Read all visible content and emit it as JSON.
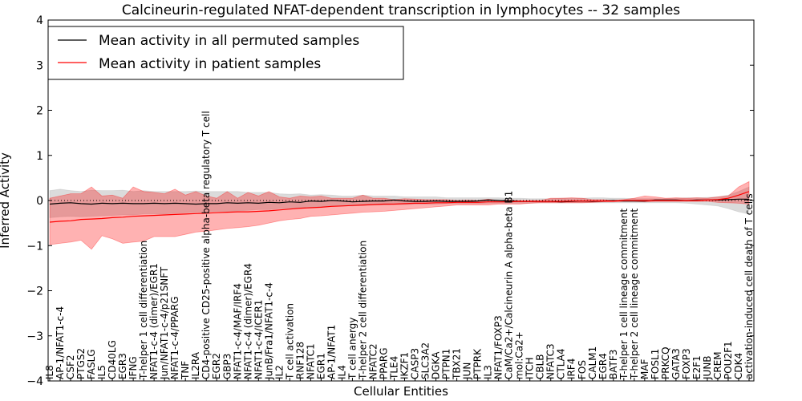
{
  "chart_data": {
    "type": "line",
    "title": "Calcineurin-regulated NFAT-dependent transcription in lymphocytes -- 32 samples",
    "xlabel": "Cellular Entities",
    "ylabel": "Inferred Activity",
    "ylim": [
      -4,
      4
    ],
    "yticks": [
      -4,
      -3,
      -2,
      -1,
      0,
      1,
      2,
      3,
      4
    ],
    "legend_position": "top-left",
    "categories": [
      "IL8",
      "AP-1/NFAT1-c-4",
      "CSF2",
      "PTGS2",
      "FASLG",
      "IL5",
      "CD40LG",
      "EGR3",
      "IFNG",
      "T-helper 1 cell differentiation",
      "NFAT1-c-4 (dimer)/EGR1",
      "Jun/NFAT1-c-4/p21SNFT",
      "NFAT1-c-4/PPARG",
      "TNF",
      "IL2RA",
      "CD4-positive CD25-positive alpha-beta regulatory T cell",
      "EGR2",
      "GBP3",
      "NFAT1-c-4/MAF/IRF4",
      "NFAT1-c-4 (dimer)/EGR4",
      "NFAT1-c-4/ICER1",
      "JunB/Fra1/NFAT1-c-4",
      "IL2",
      "T cell activation",
      "RNF128",
      "NFATC1",
      "EGR1",
      "AP-1/NFAT1",
      "IL4",
      "T cell anergy",
      "T-helper 2 cell differentiation",
      "NFATC2",
      "PPARG",
      "TLE4",
      "IKZF1",
      "CASP3",
      "SLC3A2",
      "DGKA",
      "PTPN1",
      "TBX21",
      "JUN",
      "PTPRK",
      "IL3",
      "NFAT1/FOXP3",
      "CaM/Ca2+/Calcineurin A alpha-beta B1",
      "mol:Ca2+",
      "ITCH",
      "CBLB",
      "NFATC3",
      "CTLA4",
      "IRF4",
      "FOS",
      "CALM1",
      "EGR4",
      "BATF3",
      "T-helper 1 cell lineage commitment",
      "T-helper 2 cell lineage commitment",
      "MAF",
      "FOSL1",
      "PRKCQ",
      "GATA3",
      "FOXP3",
      "E2F1",
      "JUNB",
      "CREM",
      "POU2F1",
      "CDK4",
      "activation-induced cell death of T cells"
    ],
    "series": [
      {
        "name": "Mean activity in all permuted samples",
        "color": "#000000",
        "values": [
          -0.08,
          -0.06,
          -0.05,
          -0.07,
          -0.08,
          -0.06,
          -0.07,
          -0.06,
          -0.07,
          -0.07,
          -0.06,
          -0.07,
          -0.06,
          -0.07,
          -0.08,
          -0.07,
          -0.07,
          -0.05,
          -0.06,
          -0.05,
          -0.06,
          -0.04,
          -0.05,
          -0.03,
          -0.04,
          -0.01,
          -0.02,
          0.0,
          -0.01,
          -0.03,
          -0.02,
          -0.01,
          -0.01,
          0.01,
          -0.01,
          -0.02,
          -0.02,
          -0.01,
          -0.02,
          -0.02,
          -0.02,
          -0.01,
          0.01,
          0.0,
          -0.01,
          -0.02,
          -0.02,
          -0.02,
          -0.02,
          -0.03,
          -0.02,
          -0.01,
          -0.02,
          -0.01,
          0.0,
          -0.01,
          -0.01,
          -0.01,
          0.01,
          0.01,
          0.01,
          0.0,
          0.01,
          0.01,
          0.01,
          0.02,
          0.03,
          0.03
        ],
        "band_upper": [
          0.22,
          0.25,
          0.22,
          0.2,
          0.23,
          0.22,
          0.22,
          0.23,
          0.2,
          0.22,
          0.2,
          0.2,
          0.2,
          0.2,
          0.21,
          0.2,
          0.2,
          0.2,
          0.2,
          0.18,
          0.18,
          0.18,
          0.15,
          0.14,
          0.15,
          0.12,
          0.13,
          0.12,
          0.1,
          0.1,
          0.12,
          0.1,
          0.1,
          0.1,
          0.08,
          0.08,
          0.08,
          0.08,
          0.06,
          0.06,
          0.06,
          0.06,
          0.06,
          0.06,
          0.05,
          0.05,
          0.04,
          0.04,
          0.04,
          0.05,
          0.05,
          0.05,
          0.06,
          0.06,
          0.05,
          0.05,
          0.04,
          0.04,
          0.04,
          0.04,
          0.05,
          0.06,
          0.06,
          0.07,
          0.08,
          0.12,
          0.2,
          0.3
        ],
        "band_lower": [
          -0.38,
          -0.36,
          -0.35,
          -0.36,
          -0.35,
          -0.34,
          -0.33,
          -0.32,
          -0.32,
          -0.3,
          -0.3,
          -0.3,
          -0.28,
          -0.27,
          -0.26,
          -0.25,
          -0.24,
          -0.24,
          -0.23,
          -0.22,
          -0.2,
          -0.2,
          -0.18,
          -0.17,
          -0.16,
          -0.15,
          -0.14,
          -0.13,
          -0.12,
          -0.12,
          -0.11,
          -0.1,
          -0.1,
          -0.09,
          -0.09,
          -0.08,
          -0.08,
          -0.08,
          -0.07,
          -0.07,
          -0.07,
          -0.07,
          -0.06,
          -0.06,
          -0.06,
          -0.06,
          -0.06,
          -0.05,
          -0.05,
          -0.05,
          -0.05,
          -0.05,
          -0.05,
          -0.05,
          -0.05,
          -0.05,
          -0.05,
          -0.05,
          -0.05,
          -0.05,
          -0.05,
          -0.06,
          -0.08,
          -0.1,
          -0.12,
          -0.18,
          -0.25,
          -0.3
        ]
      },
      {
        "name": "Mean activity in patient samples",
        "color": "#ff0000",
        "values": [
          -0.48,
          -0.46,
          -0.45,
          -0.42,
          -0.41,
          -0.4,
          -0.38,
          -0.37,
          -0.35,
          -0.34,
          -0.33,
          -0.32,
          -0.31,
          -0.3,
          -0.29,
          -0.28,
          -0.27,
          -0.26,
          -0.25,
          -0.25,
          -0.24,
          -0.23,
          -0.21,
          -0.19,
          -0.17,
          -0.16,
          -0.15,
          -0.13,
          -0.12,
          -0.11,
          -0.1,
          -0.09,
          -0.08,
          -0.08,
          -0.07,
          -0.06,
          -0.06,
          -0.05,
          -0.05,
          -0.04,
          -0.04,
          -0.04,
          -0.03,
          -0.03,
          -0.03,
          -0.02,
          -0.02,
          -0.02,
          -0.02,
          -0.02,
          -0.01,
          -0.01,
          -0.01,
          -0.01,
          -0.01,
          0.0,
          0.0,
          0.0,
          0.0,
          0.0,
          0.0,
          0.0,
          0.0,
          0.01,
          0.02,
          0.05,
          0.12,
          0.2
        ],
        "band_upper": [
          0.05,
          0.1,
          0.15,
          0.15,
          0.3,
          0.1,
          0.12,
          0.05,
          0.3,
          0.2,
          0.18,
          0.15,
          0.25,
          0.12,
          0.2,
          0.1,
          0.05,
          0.2,
          0.05,
          0.18,
          0.1,
          0.2,
          0.08,
          0.05,
          0.1,
          0.08,
          0.1,
          0.05,
          0.05,
          0.05,
          0.12,
          0.05,
          0.05,
          0.02,
          0.04,
          0.03,
          0.02,
          0.02,
          0.02,
          0.0,
          0.01,
          0.0,
          0.03,
          0.0,
          0.01,
          0.0,
          0.0,
          0.0,
          0.05,
          0.05,
          0.06,
          0.05,
          0.02,
          0.02,
          0.0,
          0.02,
          0.05,
          0.1,
          0.08,
          0.05,
          0.06,
          0.05,
          0.06,
          0.05,
          0.08,
          0.1,
          0.3,
          0.42
        ],
        "band_lower": [
          -0.98,
          -0.95,
          -0.92,
          -0.88,
          -1.08,
          -0.78,
          -0.85,
          -0.95,
          -0.92,
          -0.9,
          -0.8,
          -0.8,
          -0.8,
          -0.75,
          -0.7,
          -0.68,
          -0.65,
          -0.62,
          -0.6,
          -0.58,
          -0.55,
          -0.5,
          -0.45,
          -0.42,
          -0.4,
          -0.35,
          -0.34,
          -0.32,
          -0.3,
          -0.28,
          -0.26,
          -0.25,
          -0.24,
          -0.22,
          -0.2,
          -0.18,
          -0.16,
          -0.14,
          -0.12,
          -0.1,
          -0.1,
          -0.1,
          -0.1,
          -0.08,
          -0.08,
          -0.08,
          -0.06,
          -0.05,
          -0.05,
          -0.05,
          -0.05,
          -0.05,
          -0.04,
          -0.03,
          -0.03,
          -0.02,
          -0.02,
          -0.03,
          -0.02,
          -0.02,
          -0.02,
          -0.02,
          -0.02,
          -0.02,
          -0.04,
          -0.05,
          -0.06,
          -0.08
        ]
      }
    ],
    "zero_line": "dotted"
  }
}
